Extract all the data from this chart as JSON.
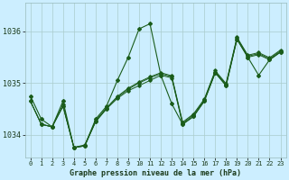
{
  "title": "Graphe pression niveau de la mer (hPa)",
  "background_color": "#cceeff",
  "grid_color": "#aacccc",
  "line_color": "#1a5c1a",
  "xlim": [
    -0.5,
    23.5
  ],
  "ylim": [
    1033.55,
    1036.55
  ],
  "yticks": [
    1034,
    1035,
    1036
  ],
  "x_labels": [
    "0",
    "1",
    "2",
    "3",
    "4",
    "5",
    "6",
    "7",
    "8",
    "9",
    "10",
    "11",
    "12",
    "13",
    "14",
    "15",
    "16",
    "17",
    "18",
    "19",
    "20",
    "21",
    "22",
    "23"
  ],
  "spike_series": {
    "x": [
      0,
      1,
      2,
      3,
      4,
      5,
      6,
      7,
      8,
      9,
      10,
      11,
      12,
      13,
      14,
      15,
      16,
      17,
      18,
      19,
      20,
      21,
      22,
      23
    ],
    "y": [
      1034.75,
      1034.3,
      1034.15,
      1034.65,
      1033.75,
      1033.78,
      1034.3,
      1034.55,
      1035.05,
      1035.5,
      1036.05,
      1036.15,
      1035.15,
      1034.6,
      1034.2,
      1034.35,
      1034.65,
      1035.2,
      1034.95,
      1035.85,
      1035.5,
      1035.15,
      1035.45,
      1035.6
    ]
  },
  "gradual_series": [
    {
      "x": [
        0,
        1,
        2,
        3,
        4,
        5,
        6,
        7,
        8,
        9,
        10,
        11,
        12,
        13,
        14,
        15,
        16,
        17,
        18,
        19,
        20,
        21,
        22,
        23
      ],
      "y": [
        1034.65,
        1034.2,
        1034.15,
        1034.55,
        1033.75,
        1033.78,
        1034.25,
        1034.5,
        1034.7,
        1034.85,
        1034.95,
        1035.05,
        1035.15,
        1035.1,
        1034.2,
        1034.35,
        1034.65,
        1035.2,
        1034.95,
        1035.85,
        1035.5,
        1035.55,
        1035.45,
        1035.6
      ]
    },
    {
      "x": [
        0,
        1,
        2,
        3,
        4,
        5,
        6,
        7,
        8,
        9,
        10,
        11,
        12,
        13,
        14,
        15,
        16,
        17,
        18,
        19,
        20,
        21,
        22,
        23
      ],
      "y": [
        1034.65,
        1034.2,
        1034.15,
        1034.55,
        1033.75,
        1033.78,
        1034.25,
        1034.5,
        1034.72,
        1034.88,
        1035.0,
        1035.1,
        1035.18,
        1035.12,
        1034.22,
        1034.38,
        1034.67,
        1035.22,
        1034.97,
        1035.87,
        1035.52,
        1035.57,
        1035.47,
        1035.62
      ]
    },
    {
      "x": [
        0,
        1,
        2,
        3,
        4,
        5,
        6,
        7,
        8,
        9,
        10,
        11,
        12,
        13,
        14,
        15,
        16,
        17,
        18,
        19,
        20,
        21,
        22,
        23
      ],
      "y": [
        1034.65,
        1034.2,
        1034.15,
        1034.58,
        1033.75,
        1033.8,
        1034.27,
        1034.52,
        1034.74,
        1034.9,
        1035.02,
        1035.12,
        1035.2,
        1035.14,
        1034.24,
        1034.4,
        1034.69,
        1035.24,
        1034.99,
        1035.89,
        1035.54,
        1035.59,
        1035.49,
        1035.64
      ]
    }
  ]
}
